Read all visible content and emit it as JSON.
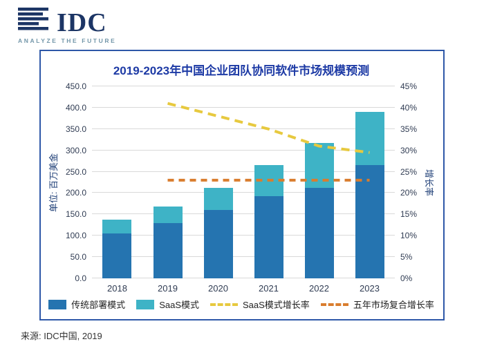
{
  "header": {
    "logo_text": "IDC",
    "tagline": "ANALYZE THE FUTURE"
  },
  "chart": {
    "title": "2019-2023年中国企业团队协同软件市场规模预测",
    "y_left_label": "单位: 百万美金",
    "y_right_label": "增长率"
  },
  "source": "来源: IDC中国, 2019",
  "colors": {
    "navy_logo": "#1c3565",
    "panel_border": "#2d57a8",
    "title_blue": "#1d3aa5",
    "traditional_bar": "#2574b0",
    "saas_bar": "#3eb3c6",
    "saas_growth_line": "#e7c93f",
    "cagr_line": "#d97d2e"
  },
  "chart_data": {
    "type": "bar",
    "subtype": "stacked-bars-with-lines",
    "categories": [
      "2018",
      "2019",
      "2020",
      "2021",
      "2022",
      "2023"
    ],
    "series": [
      {
        "name": "传统部署模式",
        "type": "bar",
        "axis": "left",
        "color": "#2574b0",
        "values": [
          105,
          130,
          160,
          192,
          212,
          265
        ]
      },
      {
        "name": "SaaS模式",
        "type": "bar",
        "axis": "left",
        "color": "#3eb3c6",
        "values": [
          32,
          38,
          52,
          73,
          106,
          125
        ]
      },
      {
        "name": "SaaS模式增长率",
        "type": "line",
        "axis": "right",
        "color": "#e7c93f",
        "dash": "12 8",
        "values": [
          null,
          41,
          38,
          35,
          31,
          29.5
        ]
      },
      {
        "name": "五年市场复合增长率",
        "type": "line",
        "axis": "right",
        "color": "#d97d2e",
        "dash": "9 7",
        "values": [
          null,
          23,
          23,
          23,
          23,
          23
        ]
      }
    ],
    "stacked_totals": [
      137,
      168,
      212,
      265,
      318,
      390
    ],
    "title": "2019-2023年中国企业团队协同软件市场规模预测",
    "xlabel": "",
    "ylabel_left": "单位: 百万美金",
    "ylabel_right": "增长率",
    "y_left": {
      "min": 0,
      "max": 450,
      "step": 50,
      "decimals": 1
    },
    "y_right": {
      "min": 0,
      "max": 45,
      "step": 5,
      "suffix": "%"
    },
    "grid": true,
    "legend_position": "bottom"
  }
}
